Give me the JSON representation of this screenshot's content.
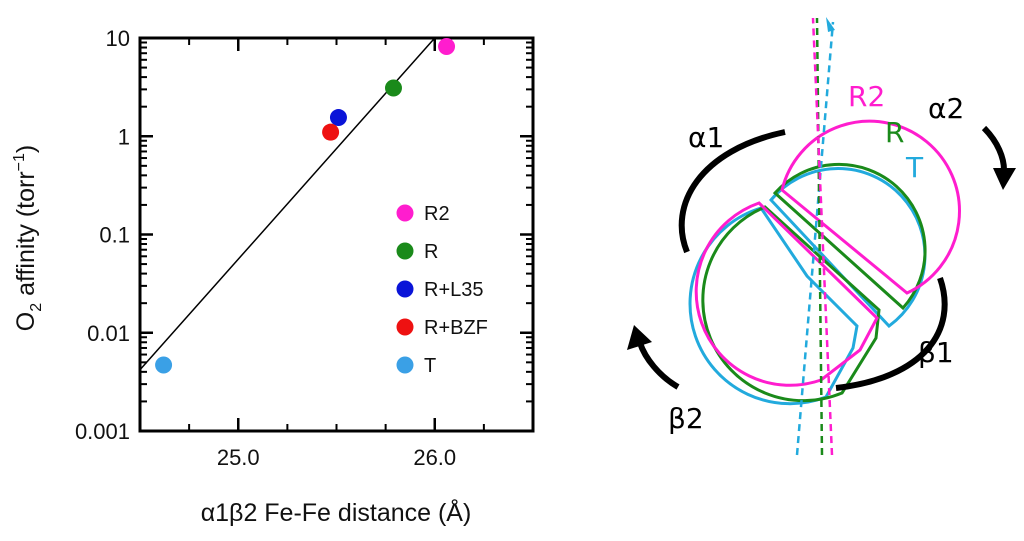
{
  "chart_data": {
    "type": "scatter",
    "title": "",
    "xlabel": "α1β2 Fe-Fe distance (Å)",
    "ylabel_main": "O",
    "ylabel_sub": "2",
    "ylabel_rest": " affinity (torr",
    "ylabel_sup": "−1",
    "ylabel_close": ")",
    "ylabel": "O2 affinity (torr−1)",
    "xlim": [
      24.5,
      26.5
    ],
    "ylim": [
      0.001,
      10
    ],
    "yscale": "log",
    "xticks": [
      25.0,
      26.0
    ],
    "xtick_labels": [
      "25.0",
      "26.0"
    ],
    "yticks": [
      0.001,
      0.01,
      0.1,
      1,
      10
    ],
    "ytick_labels": [
      "0.001",
      "0.01",
      "0.1",
      "1",
      "10"
    ],
    "grid": false,
    "legend_position": "lower-right",
    "series": [
      {
        "name": "R2",
        "color": "#ff1dce",
        "x": [
          26.06
        ],
        "y": [
          8.2
        ]
      },
      {
        "name": "R",
        "color": "#1a8a1a",
        "x": [
          25.79
        ],
        "y": [
          3.1
        ]
      },
      {
        "name": "R+L35",
        "color": "#0a14d8",
        "x": [
          25.51
        ],
        "y": [
          1.55
        ]
      },
      {
        "name": "R+BZF",
        "color": "#ee1111",
        "x": [
          25.47
        ],
        "y": [
          1.1
        ]
      },
      {
        "name": "T",
        "color": "#3aa0e6",
        "x": [
          24.62
        ],
        "y": [
          0.0047
        ]
      }
    ],
    "fit_line": {
      "x": [
        24.5,
        26.0
      ],
      "y": [
        0.0042,
        10
      ]
    }
  },
  "diagram": {
    "labels": {
      "alpha1": "α1",
      "alpha2": "α2",
      "beta1": "β1",
      "beta2": "β2",
      "r2": "R2",
      "r": "R",
      "t": "T"
    },
    "colors": {
      "r2": "#ff1dce",
      "r": "#1a8a1a",
      "t": "#22aadd",
      "arrow": "#000000"
    }
  }
}
